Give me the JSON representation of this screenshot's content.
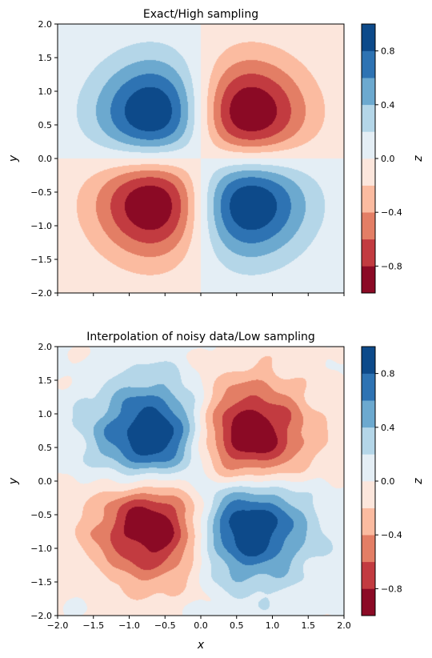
{
  "figure": {
    "colormap": "RdBu",
    "levels": [
      -1.0,
      -0.8,
      -0.6,
      -0.4,
      -0.2,
      0.0,
      0.2,
      0.4,
      0.6,
      0.8,
      1.0
    ],
    "level_colors": [
      "#8b0a25",
      "#c23b40",
      "#e37e65",
      "#fbbba0",
      "#fce6dc",
      "#e4eef5",
      "#b4d6e8",
      "#6ca9cf",
      "#2e73b3",
      "#0d4a8a"
    ],
    "colorbar_label": "z",
    "colorbar_ticks": [
      {
        "value": -0.8,
        "label": "−0.8"
      },
      {
        "value": -0.4,
        "label": "−0.4"
      },
      {
        "value": 0.0,
        "label": "0.0"
      },
      {
        "value": 0.4,
        "label": "0.4"
      },
      {
        "value": 0.8,
        "label": "0.8"
      }
    ]
  },
  "chart_data": [
    {
      "type": "heatmap",
      "subtype": "filled-contour",
      "title": "Exact/High sampling",
      "xlabel": "",
      "ylabel": "y",
      "xlim": [
        -2.0,
        2.0
      ],
      "ylim": [
        -2.0,
        2.0
      ],
      "xticks": [
        -2.0,
        -1.5,
        -1.0,
        -0.5,
        0.0,
        0.5,
        1.0,
        1.5,
        2.0
      ],
      "xtick_labels_shown": false,
      "yticks": [
        {
          "value": -2.0,
          "label": "−2.0"
        },
        {
          "value": -1.5,
          "label": "−1.5"
        },
        {
          "value": -1.0,
          "label": "−1.0"
        },
        {
          "value": -0.5,
          "label": "−0.5"
        },
        {
          "value": 0.0,
          "label": "0.0"
        },
        {
          "value": 0.5,
          "label": "0.5"
        },
        {
          "value": 1.0,
          "label": "1.0"
        },
        {
          "value": 1.5,
          "label": "1.5"
        },
        {
          "value": 2.0,
          "label": "2.0"
        }
      ],
      "zlim": [
        -1.0,
        1.0
      ],
      "features": [
        {
          "kind": "minimum",
          "x": -0.55,
          "y": -0.55,
          "z": -1.0
        },
        {
          "kind": "maximum",
          "x": 0.55,
          "y": 0.55,
          "z": 1.0
        }
      ],
      "noisy": false
    },
    {
      "type": "heatmap",
      "subtype": "filled-contour",
      "title": "Interpolation of noisy data/Low sampling",
      "xlabel": "x",
      "ylabel": "y",
      "xlim": [
        -2.0,
        2.0
      ],
      "ylim": [
        -2.0,
        2.0
      ],
      "xticks": [
        {
          "value": -2.0,
          "label": "−2.0"
        },
        {
          "value": -1.5,
          "label": "−1.5"
        },
        {
          "value": -1.0,
          "label": "−1.0"
        },
        {
          "value": -0.5,
          "label": "−0.5"
        },
        {
          "value": 0.0,
          "label": "0.0"
        },
        {
          "value": 0.5,
          "label": "0.5"
        },
        {
          "value": 1.0,
          "label": "1.0"
        },
        {
          "value": 1.5,
          "label": "1.5"
        },
        {
          "value": 2.0,
          "label": "2.0"
        }
      ],
      "xtick_labels_shown": true,
      "yticks": [
        {
          "value": -2.0,
          "label": "−2.0"
        },
        {
          "value": -1.5,
          "label": "−1.5"
        },
        {
          "value": -1.0,
          "label": "−1.0"
        },
        {
          "value": -0.5,
          "label": "−0.5"
        },
        {
          "value": 0.0,
          "label": "0.0"
        },
        {
          "value": 0.5,
          "label": "0.5"
        },
        {
          "value": 1.0,
          "label": "1.0"
        },
        {
          "value": 1.5,
          "label": "1.5"
        },
        {
          "value": 2.0,
          "label": "2.0"
        }
      ],
      "zlim": [
        -1.0,
        1.0
      ],
      "features": [
        {
          "kind": "minimum",
          "x": -0.55,
          "y": -0.6,
          "z": -1.0
        },
        {
          "kind": "maximum",
          "x": 0.55,
          "y": 0.55,
          "z": 1.0
        }
      ],
      "noisy": true
    }
  ]
}
